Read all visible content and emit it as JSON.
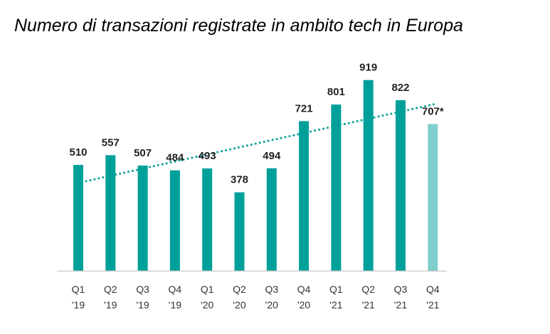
{
  "chart_data": {
    "type": "bar",
    "title": "Numero di transazioni registrate in ambito tech in Europa",
    "categories": [
      [
        "Q1",
        "'19"
      ],
      [
        "Q2",
        "'19"
      ],
      [
        "Q3",
        "'19"
      ],
      [
        "Q4",
        "'19"
      ],
      [
        "Q1",
        "'20"
      ],
      [
        "Q2",
        "'20"
      ],
      [
        "Q3",
        "'20"
      ],
      [
        "Q4",
        "'20"
      ],
      [
        "Q1",
        "'21"
      ],
      [
        "Q2",
        "'21"
      ],
      [
        "Q3",
        "'21"
      ],
      [
        "Q4",
        "'21"
      ]
    ],
    "values": [
      510,
      557,
      507,
      484,
      493,
      378,
      494,
      721,
      801,
      919,
      822,
      707
    ],
    "value_labels": [
      "510",
      "557",
      "507",
      "484",
      "493",
      "378",
      "494",
      "721",
      "801",
      "919",
      "822",
      "707*"
    ],
    "estimated": [
      false,
      false,
      false,
      false,
      false,
      false,
      false,
      false,
      false,
      false,
      false,
      true
    ],
    "trendline": {
      "type": "linear",
      "style": "dotted"
    },
    "ylim": [
      0,
      1000
    ],
    "grid": false,
    "legend": "none",
    "colors": {
      "bar": "#00a09a",
      "estimated_bar": "#7ecfcb",
      "trend": "#00a09a",
      "axis": "#d0d0d0"
    }
  }
}
